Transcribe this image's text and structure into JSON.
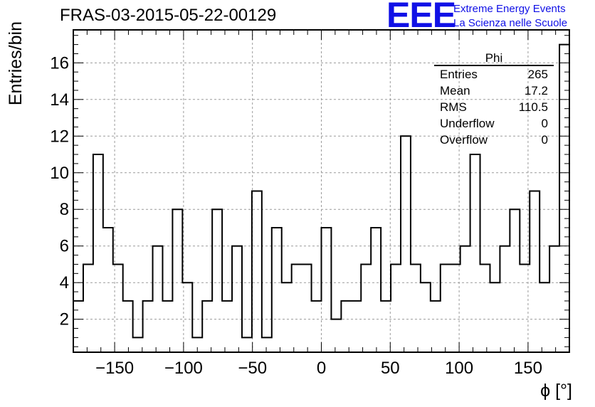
{
  "chart_data": {
    "type": "bar",
    "title": "FRAS-03-2015-05-22-00129",
    "xlabel": "ϕ [°]",
    "ylabel": "Entries/bin",
    "xlim": [
      -180,
      180
    ],
    "ylim": [
      0.2,
      17.8
    ],
    "bin_edges_start": -180,
    "bin_width": 7.2,
    "values": [
      3,
      5,
      11,
      7,
      5,
      3,
      1,
      3,
      6,
      3,
      8,
      4,
      1,
      3,
      8,
      3,
      6,
      1,
      9,
      1,
      7,
      4,
      5,
      5,
      3,
      7,
      2,
      3,
      3,
      5,
      7,
      3,
      5,
      12,
      5,
      4,
      3,
      5,
      5,
      6,
      11,
      5,
      4,
      6,
      8,
      5,
      9,
      4,
      6,
      17
    ],
    "xticks": [
      -150,
      -100,
      -50,
      0,
      50,
      100,
      150
    ],
    "xtick_labels": [
      "−150",
      "−100",
      "−50",
      "0",
      "50",
      "100",
      "150"
    ],
    "yticks": [
      2,
      4,
      6,
      8,
      10,
      12,
      14,
      16
    ],
    "ytick_labels": [
      "2",
      "4",
      "6",
      "8",
      "10",
      "12",
      "14",
      "16"
    ],
    "grid": true,
    "legend": "none"
  },
  "stats": {
    "title": "Phi",
    "rows": [
      {
        "label": "Entries",
        "value": "265"
      },
      {
        "label": "Mean",
        "value": "17.2"
      },
      {
        "label": "RMS",
        "value": "110.5"
      },
      {
        "label": "Underflow",
        "value": "0"
      },
      {
        "label": "Overflow",
        "value": "0"
      }
    ]
  },
  "logo": {
    "mark": "EEE",
    "line1": "Extreme Energy Events",
    "line2": "La Scienza nelle Scuole",
    "color": "#1010e6"
  }
}
